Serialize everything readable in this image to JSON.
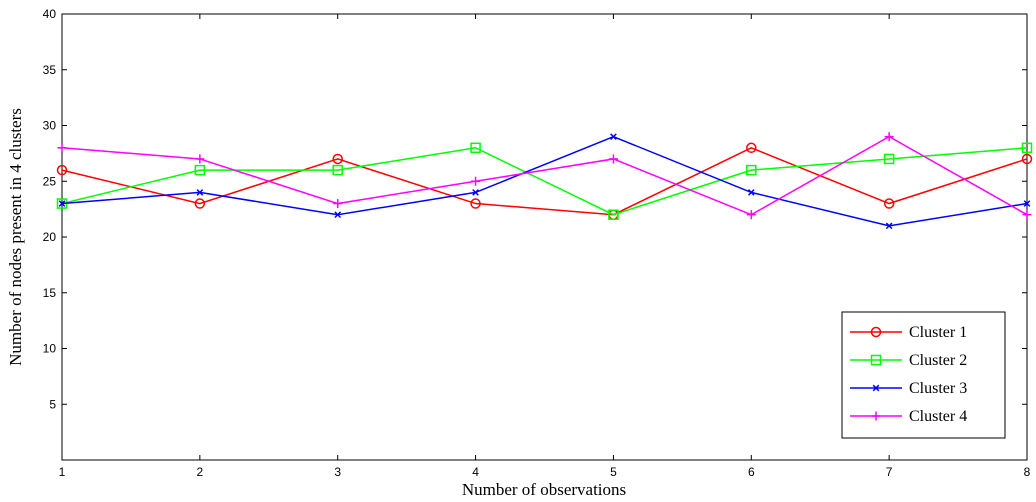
{
  "chart_data": {
    "type": "line",
    "xlabel": "Number of observations",
    "ylabel": "Number of nodes present in 4 clusters",
    "xlim": [
      1,
      8
    ],
    "ylim": [
      0,
      40
    ],
    "xticks": [
      "1",
      "2",
      "3",
      "4",
      "5",
      "6",
      "7",
      "8"
    ],
    "yticks": [
      "5",
      "10",
      "15",
      "20",
      "25",
      "30",
      "35",
      "40"
    ],
    "x": [
      1,
      2,
      3,
      4,
      5,
      6,
      7,
      8
    ],
    "legend_position": "bottom-right",
    "grid": false,
    "series": [
      {
        "name": "Cluster 1",
        "color": "#ff0000",
        "marker": "circle",
        "values": [
          26,
          23,
          27,
          23,
          22,
          28,
          23,
          27
        ]
      },
      {
        "name": "Cluster 2",
        "color": "#00ff00",
        "marker": "square",
        "values": [
          23,
          26,
          26,
          28,
          22,
          26,
          27,
          28
        ]
      },
      {
        "name": "Cluster 3",
        "color": "#0000ff",
        "marker": "x",
        "values": [
          23,
          24,
          22,
          24,
          29,
          24,
          21,
          23
        ]
      },
      {
        "name": "Cluster 4",
        "color": "#ff00ff",
        "marker": "plus",
        "values": [
          28,
          27,
          23,
          25,
          27,
          22,
          29,
          22
        ]
      }
    ]
  }
}
